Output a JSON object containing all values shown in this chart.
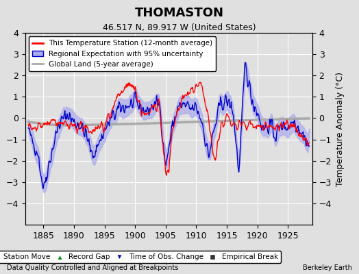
{
  "title": "THOMASTON",
  "subtitle": "46.517 N, 89.917 W (United States)",
  "ylabel": "Temperature Anomaly (°C)",
  "xlabel_bottom_left": "Data Quality Controlled and Aligned at Breakpoints",
  "xlabel_bottom_right": "Berkeley Earth",
  "xlim": [
    1882,
    1929
  ],
  "ylim": [
    -5,
    4
  ],
  "yticks": [
    -4,
    -3,
    -2,
    -1,
    0,
    1,
    2,
    3,
    4
  ],
  "xticks": [
    1885,
    1890,
    1895,
    1900,
    1905,
    1910,
    1915,
    1920,
    1925
  ],
  "bg_color": "#e0e0e0",
  "plot_bg_color": "#e0e0e0",
  "red_color": "#ff0000",
  "blue_color": "#0000cc",
  "blue_fill_color": "#aaaaee",
  "gray_color": "#aaaaaa",
  "legend_items": [
    {
      "label": "This Temperature Station (12-month average)",
      "color": "#ff0000"
    },
    {
      "label": "Regional Expectation with 95% uncertainty",
      "color": "#0000cc"
    },
    {
      "label": "Global Land (5-year average)",
      "color": "#aaaaaa"
    }
  ],
  "legend_bottom_items": [
    {
      "label": "Station Move",
      "marker": "D",
      "color": "#ff0000"
    },
    {
      "label": "Record Gap",
      "marker": "^",
      "color": "#008800"
    },
    {
      "label": "Time of Obs. Change",
      "marker": "v",
      "color": "#0000cc"
    },
    {
      "label": "Empirical Break",
      "marker": "s",
      "color": "#333333"
    }
  ],
  "seed": 42
}
